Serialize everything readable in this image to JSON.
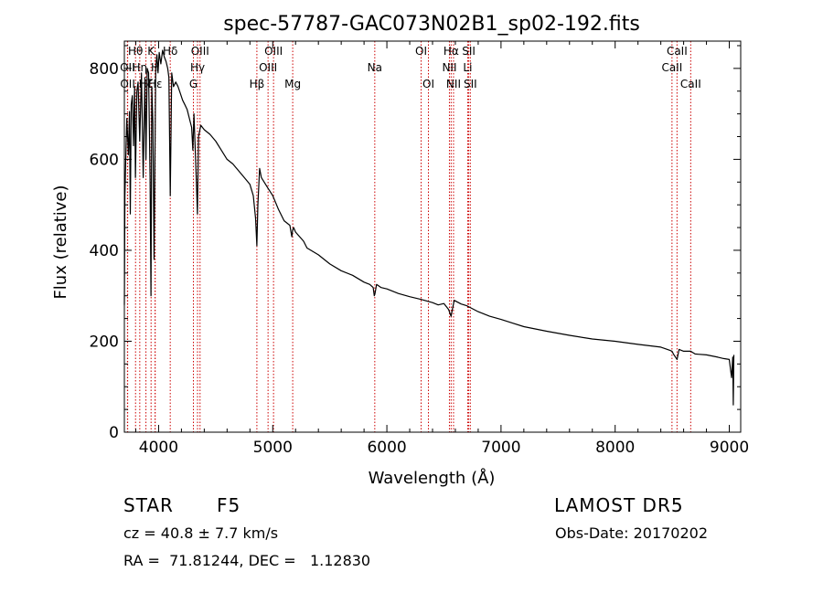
{
  "chart_data": {
    "type": "line",
    "title": "spec-57787-GAC073N02B1_sp02-192.fits",
    "xlabel": "Wavelength (Å)",
    "ylabel": "Flux (relative)",
    "xlim": [
      3700,
      9100
    ],
    "ylim": [
      0,
      860
    ],
    "xticks": [
      4000,
      5000,
      6000,
      7000,
      8000,
      9000
    ],
    "yticks": [
      0,
      200,
      400,
      600,
      800
    ],
    "grid": false,
    "series": [
      {
        "x": [
          3700,
          3705,
          3712,
          3722,
          3735,
          3745,
          3752,
          3760,
          3770,
          3780,
          3790,
          3797,
          3810,
          3820,
          3835,
          3850,
          3865,
          3880,
          3889,
          3900,
          3912,
          3925,
          3933,
          3940,
          3950,
          3960,
          3968,
          3975,
          3985,
          3995,
          4005,
          4020,
          4035,
          4050,
          4065,
          4080,
          4090,
          4102,
          4115,
          4130,
          4150,
          4170,
          4190,
          4210,
          4230,
          4250,
          4270,
          4290,
          4300,
          4310,
          4330,
          4340,
          4350,
          4370,
          4400,
          4450,
          4500,
          4550,
          4600,
          4650,
          4700,
          4750,
          4800,
          4830,
          4850,
          4861,
          4870,
          4885,
          4900,
          4950,
          5000,
          5050,
          5100,
          5150,
          5167,
          5175,
          5183,
          5200,
          5270,
          5300,
          5400,
          5500,
          5600,
          5700,
          5800,
          5850,
          5880,
          5890,
          5896,
          5910,
          5950,
          6000,
          6100,
          6200,
          6300,
          6400,
          6450,
          6500,
          6540,
          6555,
          6563,
          6570,
          6590,
          6650,
          6700,
          6800,
          6900,
          7000,
          7100,
          7200,
          7400,
          7600,
          7800,
          8000,
          8200,
          8400,
          8480,
          8498,
          8510,
          8542,
          8560,
          8600,
          8662,
          8700,
          8800,
          8900,
          8950,
          9000,
          9020,
          9030,
          9035,
          9040
        ],
        "values": [
          280,
          520,
          600,
          690,
          610,
          705,
          480,
          720,
          740,
          630,
          760,
          560,
          750,
          770,
          640,
          790,
          560,
          780,
          600,
          800,
          790,
          560,
          300,
          760,
          680,
          380,
          620,
          800,
          830,
          790,
          835,
          810,
          840,
          825,
          815,
          800,
          780,
          520,
          790,
          760,
          770,
          760,
          745,
          730,
          720,
          710,
          690,
          670,
          620,
          700,
          560,
          480,
          650,
          675,
          665,
          655,
          640,
          620,
          600,
          590,
          575,
          560,
          545,
          520,
          470,
          410,
          500,
          580,
          560,
          540,
          520,
          490,
          465,
          455,
          430,
          445,
          450,
          440,
          420,
          405,
          390,
          370,
          355,
          345,
          330,
          325,
          318,
          300,
          305,
          325,
          318,
          315,
          305,
          298,
          292,
          285,
          280,
          283,
          270,
          260,
          255,
          265,
          290,
          282,
          278,
          265,
          255,
          248,
          240,
          232,
          222,
          213,
          205,
          200,
          193,
          187,
          180,
          178,
          172,
          160,
          182,
          178,
          178,
          172,
          170,
          165,
          162,
          160,
          120,
          165,
          60,
          170
        ]
      }
    ],
    "lines": [
      {
        "label": "Hθ",
        "x": 3798,
        "row": 0
      },
      {
        "label": "OII",
        "x": 3727,
        "row": 1
      },
      {
        "label": "Hη",
        "x": 3835,
        "row": 1
      },
      {
        "label": "OII",
        "x": 3729,
        "row": 2
      },
      {
        "label": "Hζ",
        "x": 3889,
        "row": 2
      },
      {
        "label": "K",
        "x": 3934,
        "row": 0
      },
      {
        "label": "H",
        "x": 3969,
        "row": 1
      },
      {
        "label": "Hε",
        "x": 3970,
        "row": 2
      },
      {
        "label": "Hδ",
        "x": 4102,
        "row": 0
      },
      {
        "label": "OIII",
        "x": 4363,
        "row": 0
      },
      {
        "label": "Hγ",
        "x": 4341,
        "row": 1
      },
      {
        "label": "G",
        "x": 4305,
        "row": 2
      },
      {
        "label": "Hβ",
        "x": 4861,
        "row": 2
      },
      {
        "label": "OIII",
        "x": 5007,
        "row": 0
      },
      {
        "label": "OIII",
        "x": 4959,
        "row": 1
      },
      {
        "label": "Mg",
        "x": 5175,
        "row": 2
      },
      {
        "label": "Na",
        "x": 5894,
        "row": 1
      },
      {
        "label": "OI",
        "x": 6300,
        "row": 0
      },
      {
        "label": "OI",
        "x": 6364,
        "row": 2
      },
      {
        "label": "Hα",
        "x": 6563,
        "row": 0
      },
      {
        "label": "NII",
        "x": 6548,
        "row": 1
      },
      {
        "label": "NII",
        "x": 6584,
        "row": 2
      },
      {
        "label": "SII",
        "x": 6717,
        "row": 0
      },
      {
        "label": "Li",
        "x": 6708,
        "row": 1
      },
      {
        "label": "SII",
        "x": 6731,
        "row": 2
      },
      {
        "label": "CaII",
        "x": 8542,
        "row": 0
      },
      {
        "label": "CaII",
        "x": 8498,
        "row": 1
      },
      {
        "label": "CaII",
        "x": 8662,
        "row": 2
      }
    ]
  },
  "info": {
    "object_class": "STAR",
    "subclass": "F5",
    "survey": "LAMOST DR5",
    "redshift": "cz = 40.8 ± 7.7 km/s",
    "obs_date": "Obs-Date: 20170202",
    "coords": "RA =  71.81244, DEC =   1.12830"
  },
  "colors": {
    "line": "#000000",
    "marker": "#cc0000",
    "background": "#ffffff"
  }
}
